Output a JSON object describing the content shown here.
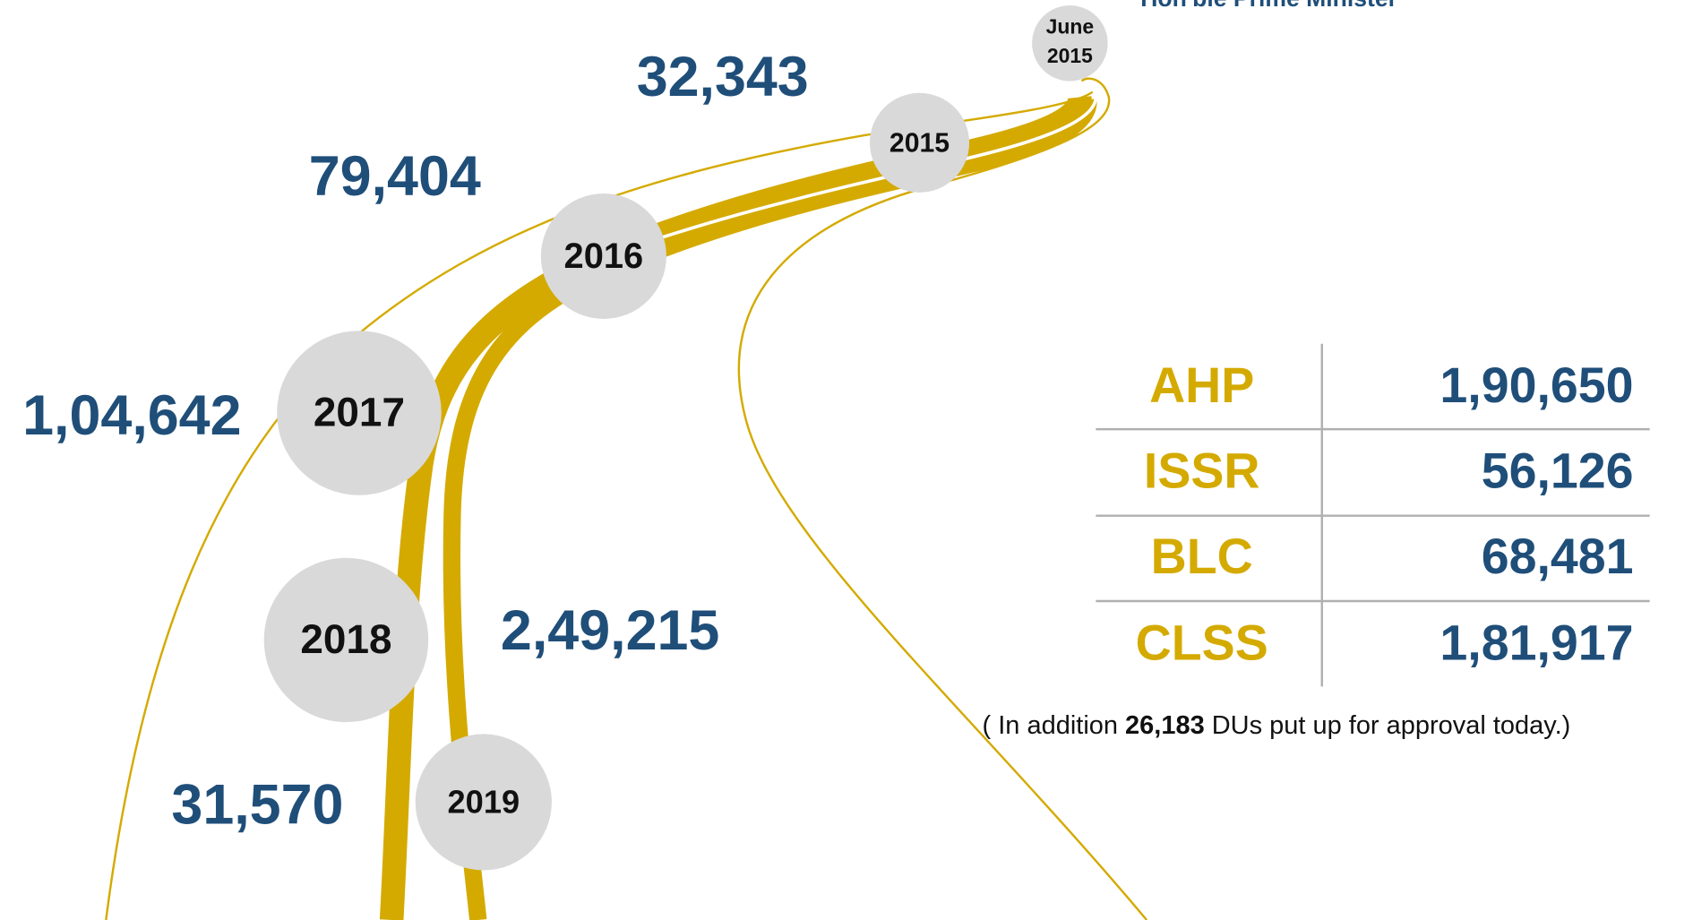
{
  "header": {
    "caption": "Hon'ble Prime Minister"
  },
  "milestones": [
    {
      "year": [
        "June",
        "2015"
      ]
    },
    {
      "year": "2015",
      "count": "32,343"
    },
    {
      "year": "2016",
      "count": "79,404"
    },
    {
      "year": "2017",
      "count": "1,04,642"
    },
    {
      "year": "2018",
      "count": "2,49,215"
    },
    {
      "year": "2019",
      "count": "31,570"
    }
  ],
  "table": {
    "rows": [
      [
        "AHP",
        "1,90,650"
      ],
      [
        "ISSR",
        "56,126"
      ],
      [
        "BLC",
        "68,481"
      ],
      [
        "CLSS",
        "1,81,917"
      ]
    ]
  },
  "note": {
    "before": "( In addition ",
    "highlight": "26,183",
    "after": " DUs put up for  approval today.)"
  }
}
